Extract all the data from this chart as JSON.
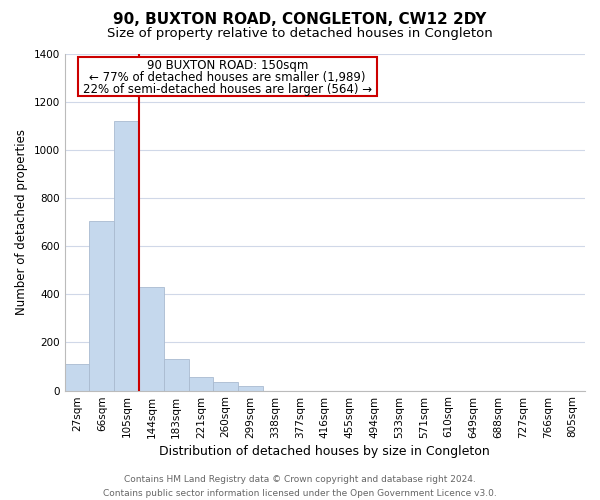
{
  "title": "90, BUXTON ROAD, CONGLETON, CW12 2DY",
  "subtitle": "Size of property relative to detached houses in Congleton",
  "xlabel": "Distribution of detached houses by size in Congleton",
  "ylabel": "Number of detached properties",
  "categories": [
    "27sqm",
    "66sqm",
    "105sqm",
    "144sqm",
    "183sqm",
    "221sqm",
    "260sqm",
    "299sqm",
    "338sqm",
    "377sqm",
    "416sqm",
    "455sqm",
    "494sqm",
    "533sqm",
    "571sqm",
    "610sqm",
    "649sqm",
    "688sqm",
    "727sqm",
    "766sqm",
    "805sqm"
  ],
  "values": [
    110,
    705,
    1120,
    430,
    130,
    57,
    35,
    18,
    0,
    0,
    0,
    0,
    0,
    0,
    0,
    0,
    0,
    0,
    0,
    0,
    0
  ],
  "bar_color": "#c5d8ed",
  "bar_edge_color": "#aabbd0",
  "highlight_line_color": "#cc0000",
  "annotation_line1": "90 BUXTON ROAD: 150sqm",
  "annotation_line2": "← 77% of detached houses are smaller (1,989)",
  "annotation_line3": "22% of semi-detached houses are larger (564) →",
  "ylim": [
    0,
    1400
  ],
  "yticks": [
    0,
    200,
    400,
    600,
    800,
    1000,
    1200,
    1400
  ],
  "grid_color": "#d0d8e8",
  "background_color": "#ffffff",
  "footer_text": "Contains HM Land Registry data © Crown copyright and database right 2024.\nContains public sector information licensed under the Open Government Licence v3.0.",
  "title_fontsize": 11,
  "subtitle_fontsize": 9.5,
  "xlabel_fontsize": 9,
  "ylabel_fontsize": 8.5,
  "tick_fontsize": 7.5,
  "annotation_fontsize": 8.5,
  "footer_fontsize": 6.5
}
